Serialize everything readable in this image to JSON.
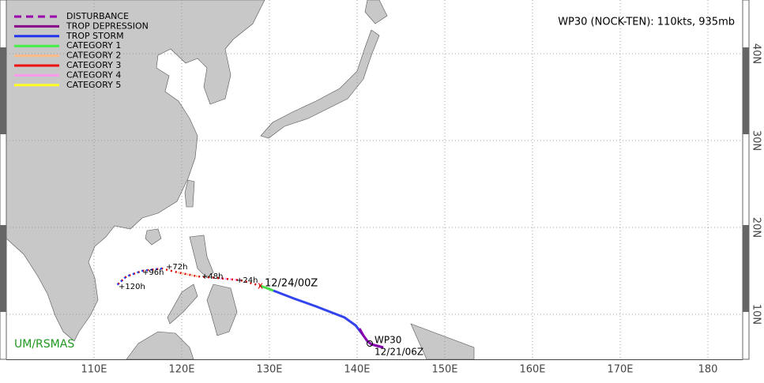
{
  "title": "WP30 (NOCK-TEN): 110kts, 935mb",
  "legend": [
    "DISTURBANCE",
    "TROP DEPRESSION",
    "TROP STORM",
    "CATEGORY 1",
    "CATEGORY 2",
    "CATEGORY 3",
    "CATEGORY 4",
    "CATEGORY 5"
  ],
  "lon_labels": [
    "110E",
    "120E",
    "130E",
    "140E",
    "150E",
    "160E",
    "170E",
    "180"
  ],
  "lat_labels": [
    "40N",
    "30N",
    "20N",
    "10N"
  ],
  "forecast_labels": [
    "+120h",
    "+96h",
    "+72h",
    "+48h",
    "+24h"
  ],
  "annotations": {
    "init_time": "12/24/00Z",
    "storm_id": "WP30",
    "start_time": "12/21/06Z"
  },
  "credit": "UM/RSMAS"
}
